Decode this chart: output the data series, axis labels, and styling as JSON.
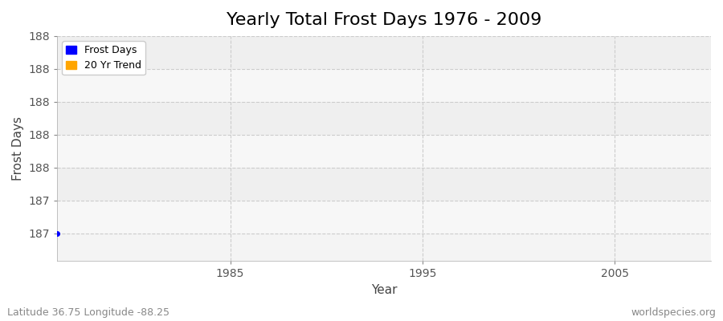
{
  "title": "Yearly Total Frost Days 1976 - 2009",
  "xlabel": "Year",
  "ylabel": "Frost Days",
  "xlim": [
    1976,
    2010
  ],
  "ylim": [
    186.83,
    188.17
  ],
  "ytick_positions": [
    187.0,
    187.2,
    187.4,
    187.6,
    187.8,
    188.0,
    188.2
  ],
  "ytick_labels": [
    "187",
    "187",
    "188",
    "188",
    "188",
    "188",
    "188"
  ],
  "xticks": [
    1985,
    1995,
    2005
  ],
  "frost_days_x": [
    1976
  ],
  "frost_days_y": [
    187.0
  ],
  "frost_days_color": "#0000ff",
  "trend_color": "#ffa500",
  "legend_labels": [
    "Frost Days",
    "20 Yr Trend"
  ],
  "bg_color": "#f4f4f4",
  "band_color_light": "#f7f7f7",
  "band_color_dark": "#efefef",
  "grid_color": "#cccccc",
  "footer_left": "Latitude 36.75 Longitude -88.25",
  "footer_right": "worldspecies.org",
  "title_fontsize": 16,
  "axis_label_fontsize": 11,
  "tick_fontsize": 10,
  "footer_fontsize": 9
}
